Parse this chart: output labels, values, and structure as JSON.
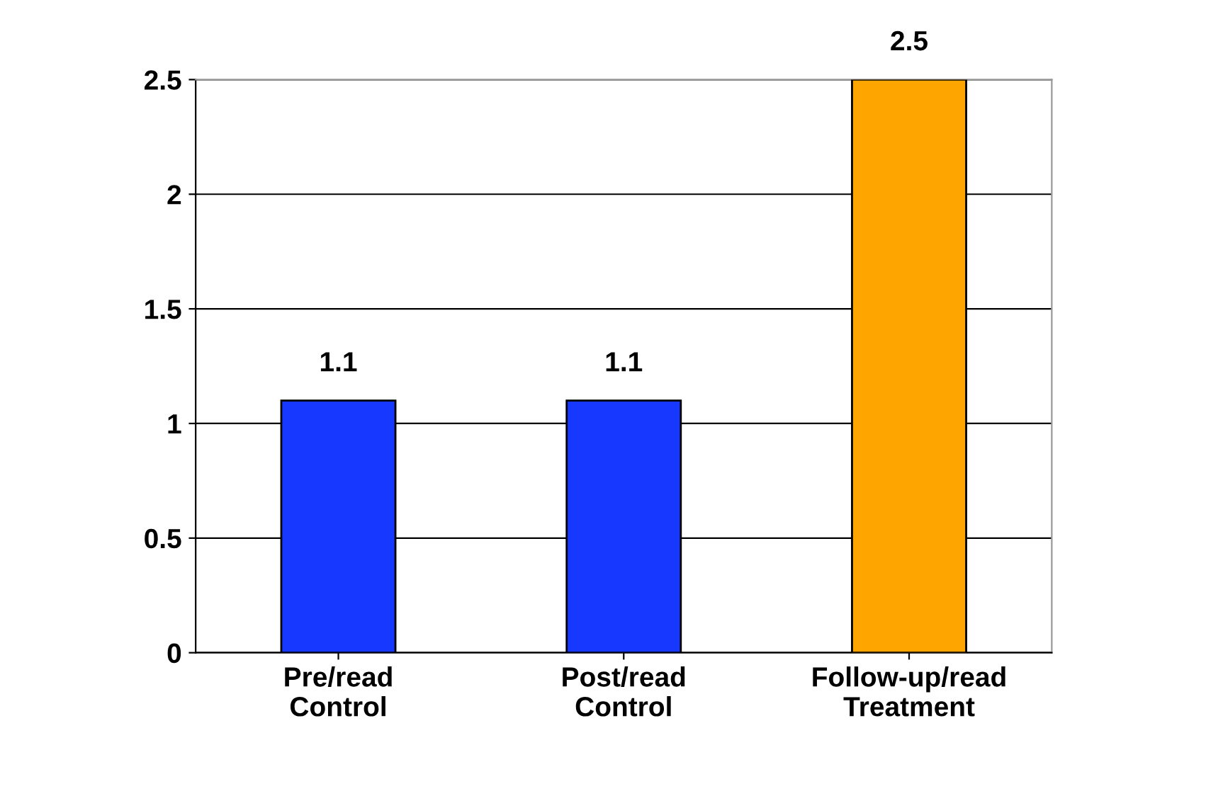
{
  "chart_data": {
    "type": "bar",
    "categories": [
      "Pre/read\nControl",
      "Post/read\nControl",
      "Follow-up/read\nTreatment"
    ],
    "values": [
      1.1,
      1.1,
      2.5
    ],
    "colors": [
      "#1638ff",
      "#1638ff",
      "#ffa500"
    ],
    "ylim": [
      0,
      2.5
    ],
    "yticks": [
      0,
      0.5,
      1,
      1.5,
      2,
      2.5
    ],
    "grid": "y",
    "data_labels": true
  }
}
